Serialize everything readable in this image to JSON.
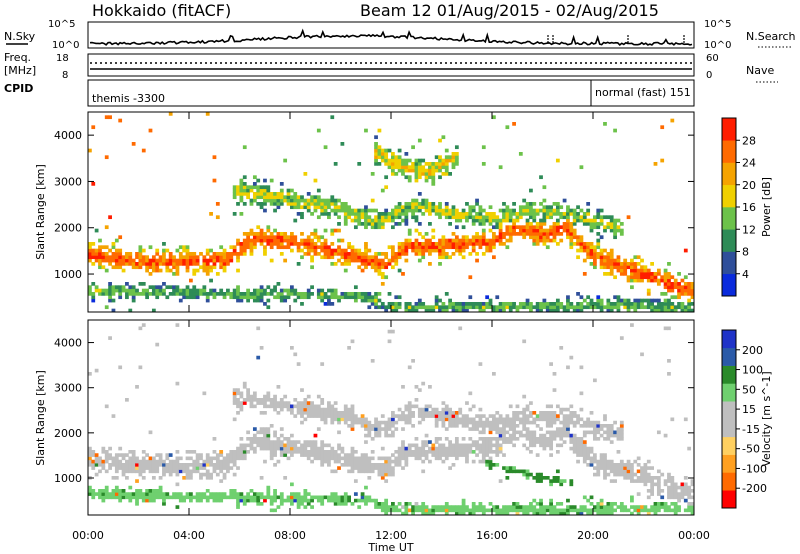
{
  "header": {
    "radar": "Hokkaido (fitACF)",
    "beam_info": "Beam 12 01/Aug/2015 - 02/Aug/2015"
  },
  "panels": {
    "nsky": {
      "label": "N.Sky",
      "left_ticks": [
        "10^5",
        "10^0"
      ],
      "right_ticks": [
        "10^5",
        "10^0"
      ],
      "right_label": "N.Search"
    },
    "freq": {
      "label_lines": [
        "Freq.",
        "[MHz]"
      ],
      "left_ticks": [
        "18",
        "8"
      ],
      "right_ticks": [
        "60",
        "0"
      ],
      "right_label": "Nave"
    },
    "cpid": {
      "label": "CPID",
      "modes": [
        "themis -3300",
        "normal (fast) 151"
      ]
    }
  },
  "colors": {
    "power_scale": [
      "#0a2bdc",
      "#2f4f9a",
      "#2e8b57",
      "#6cc24a",
      "#f0d000",
      "#f5a300",
      "#ff6a00",
      "#ff1d00"
    ],
    "velocity_scale": [
      "#ff0000",
      "#ff6a00",
      "#ffa020",
      "#ffd060",
      "#bfbfbf",
      "#bfbfbf",
      "#6fd06f",
      "#2a8a2a",
      "#2a5aa8",
      "#1f33c8"
    ]
  },
  "chart_data": [
    {
      "type": "heatmap",
      "title": "",
      "ylabel": "Slant Range [km]",
      "xlabel": "",
      "x_ticks": [
        "00:00",
        "04:00",
        "08:00",
        "12:00",
        "16:00",
        "20:00",
        "00:00"
      ],
      "y_ticks": [
        1000,
        2000,
        3000,
        4000
      ],
      "ylim": [
        180,
        4500
      ],
      "xlim_hours": [
        0,
        24
      ],
      "colorbar": {
        "label": "Power [dB]",
        "ticks": [
          4,
          8,
          12,
          16,
          20,
          24,
          28
        ],
        "range": [
          0,
          32
        ]
      },
      "features": [
        {
          "name": "main-band",
          "points": [
            [
              0,
              1400
            ],
            [
              3,
              1250
            ],
            [
              5.5,
              1300
            ],
            [
              6.5,
              1800
            ],
            [
              9,
              1600
            ],
            [
              11,
              1300
            ],
            [
              11.8,
              1200
            ],
            [
              12.5,
              1550
            ],
            [
              14,
              1600
            ],
            [
              16,
              1700
            ],
            [
              17,
              2000
            ],
            [
              18,
              1850
            ],
            [
              19,
              2000
            ],
            [
              20,
              1400
            ],
            [
              22,
              1000
            ],
            [
              24,
              600
            ]
          ],
          "width": 280,
          "value": 26
        },
        {
          "name": "upper-band",
          "points": [
            [
              6,
              2800
            ],
            [
              8,
              2600
            ],
            [
              10,
              2400
            ],
            [
              11.5,
              2100
            ],
            [
              13,
              2500
            ],
            [
              15,
              2250
            ],
            [
              16.5,
              2200
            ],
            [
              17.5,
              2350
            ],
            [
              19,
              2300
            ],
            [
              21,
              2000
            ]
          ],
          "width": 240,
          "value": 15
        },
        {
          "name": "high-patch",
          "points": [
            [
              11.5,
              3600
            ],
            [
              12.5,
              3300
            ],
            [
              13.5,
              3200
            ],
            [
              14.5,
              3500
            ]
          ],
          "width": 250,
          "value": 18
        },
        {
          "name": "low-echo",
          "points": [
            [
              0,
              650
            ],
            [
              5,
              580
            ],
            [
              11,
              520
            ],
            [
              12,
              300
            ],
            [
              16,
              300
            ],
            [
              20,
              320
            ],
            [
              24,
              300
            ]
          ],
          "width": 160,
          "value": 12
        }
      ]
    },
    {
      "type": "heatmap",
      "title": "",
      "ylabel": "Slant Range [km]",
      "xlabel": "Time UT",
      "x_ticks": [
        "00:00",
        "04:00",
        "08:00",
        "12:00",
        "16:00",
        "20:00",
        "00:00"
      ],
      "y_ticks": [
        1000,
        2000,
        3000,
        4000
      ],
      "ylim": [
        180,
        4500
      ],
      "xlim_hours": [
        0,
        24
      ],
      "colorbar": {
        "label": "Velocity [m s^-1]",
        "ticks": [
          200,
          100,
          50,
          15,
          -15,
          -50,
          -100,
          -200
        ],
        "range": [
          -250,
          250
        ]
      },
      "features": [
        {
          "name": "main-band",
          "points": [
            [
              0,
              1400
            ],
            [
              3,
              1250
            ],
            [
              5.5,
              1300
            ],
            [
              6.5,
              1800
            ],
            [
              9,
              1600
            ],
            [
              11,
              1300
            ],
            [
              11.8,
              1200
            ],
            [
              12.5,
              1550
            ],
            [
              14,
              1600
            ],
            [
              16,
              1700
            ],
            [
              17,
              2000
            ],
            [
              18,
              1850
            ],
            [
              19,
              2000
            ],
            [
              20,
              1400
            ],
            [
              22,
              1000
            ],
            [
              24,
              600
            ]
          ],
          "width": 280,
          "value": 0
        },
        {
          "name": "upper-band",
          "points": [
            [
              6,
              2800
            ],
            [
              8,
              2600
            ],
            [
              10,
              2400
            ],
            [
              11.5,
              2100
            ],
            [
              13,
              2500
            ],
            [
              15,
              2250
            ],
            [
              16.5,
              2200
            ],
            [
              17.5,
              2350
            ],
            [
              19,
              2300
            ],
            [
              21,
              2000
            ]
          ],
          "width": 240,
          "value": 0
        },
        {
          "name": "green-streak",
          "points": [
            [
              16,
              1300
            ],
            [
              17,
              1150
            ],
            [
              18,
              1000
            ],
            [
              19,
              900
            ]
          ],
          "width": 90,
          "value": 60
        },
        {
          "name": "low-echo",
          "points": [
            [
              0,
              650
            ],
            [
              5,
              580
            ],
            [
              11,
              520
            ],
            [
              12,
              300
            ],
            [
              16,
              300
            ],
            [
              20,
              320
            ],
            [
              24,
              300
            ]
          ],
          "width": 160,
          "value": 40
        }
      ]
    }
  ]
}
